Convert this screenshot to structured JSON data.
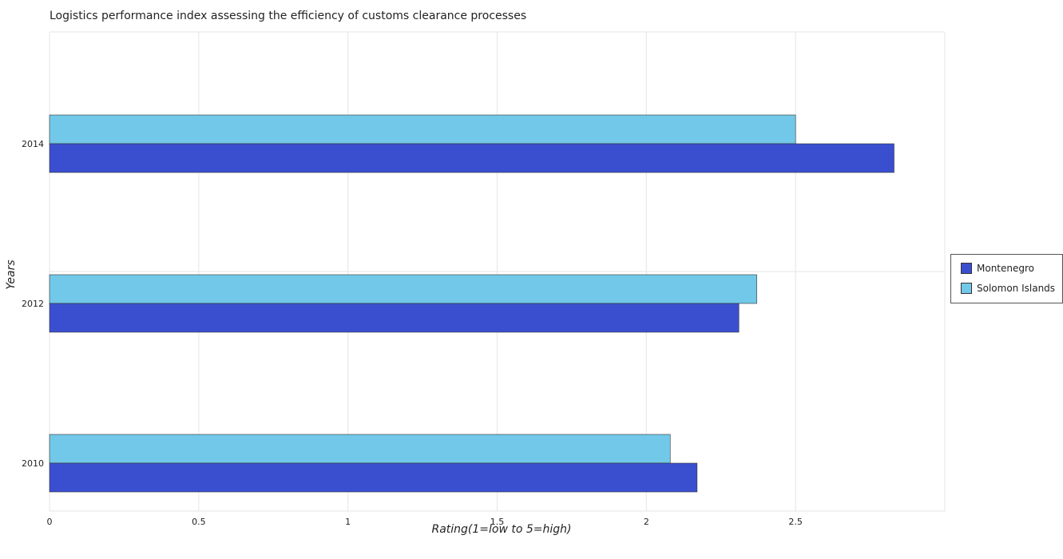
{
  "chart_data": {
    "type": "bar",
    "orientation": "horizontal",
    "title": "Logistics performance index assessing the efficiency of customs clearance processes",
    "xlabel": "Rating(1=low to 5=high)",
    "ylabel": "Years",
    "categories": [
      "2010",
      "2012",
      "2014"
    ],
    "series": [
      {
        "name": "Montenegro",
        "color": "#3a4fcf",
        "values": [
          2.17,
          2.31,
          2.83
        ]
      },
      {
        "name": "Solomon Islands",
        "color": "#72c8e8",
        "values": [
          2.08,
          2.37,
          2.5
        ]
      }
    ],
    "xlim": [
      0,
      3.0
    ],
    "xticks": [
      "0",
      "0.5",
      "1",
      "1.5",
      "2",
      "2.5"
    ],
    "grid": true,
    "legend_position": "right"
  }
}
